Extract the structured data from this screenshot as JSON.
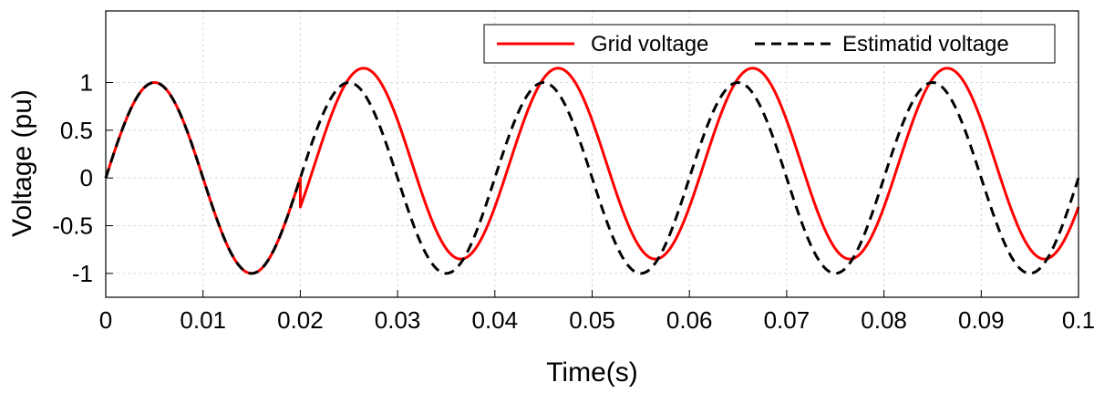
{
  "chart_data": {
    "type": "line",
    "xlabel": "Time(s)",
    "ylabel": "Voltage (pu)",
    "xlim": [
      0,
      0.1
    ],
    "ylim": [
      -1.25,
      1.75
    ],
    "xticks": [
      0,
      0.01,
      0.02,
      0.03,
      0.04,
      0.05,
      0.06,
      0.07,
      0.08,
      0.09,
      0.1
    ],
    "xtick_labels": [
      "0",
      "0.01",
      "0.02",
      "0.03",
      "0.04",
      "0.05",
      "0.06",
      "0.07",
      "0.08",
      "0.09",
      "0.1"
    ],
    "yticks": [
      -1,
      -0.5,
      0,
      0.5,
      1
    ],
    "ytick_labels": [
      "-1",
      "-0.5",
      "0",
      "0.5",
      "1"
    ],
    "grid": true,
    "legend_position": "top-right",
    "frequency_hz": 50,
    "series": [
      {
        "name": "Grid voltage",
        "color": "#ff0000",
        "line_style": "solid",
        "segments": [
          {
            "t_start": 0,
            "t_end": 0.02,
            "offset": 0,
            "amplitude": 1,
            "phase_shift": 0
          },
          {
            "t_start": 0.02,
            "t_end": 0.1,
            "offset": 0.15,
            "amplitude": 1,
            "phase_shift": 0.0015
          }
        ]
      },
      {
        "name": "Estimatid voltage",
        "color": "#000000",
        "line_style": "dashed",
        "segments": [
          {
            "t_start": 0,
            "t_end": 0.1,
            "offset": 0,
            "amplitude": 1,
            "phase_shift": 0
          }
        ]
      }
    ]
  }
}
